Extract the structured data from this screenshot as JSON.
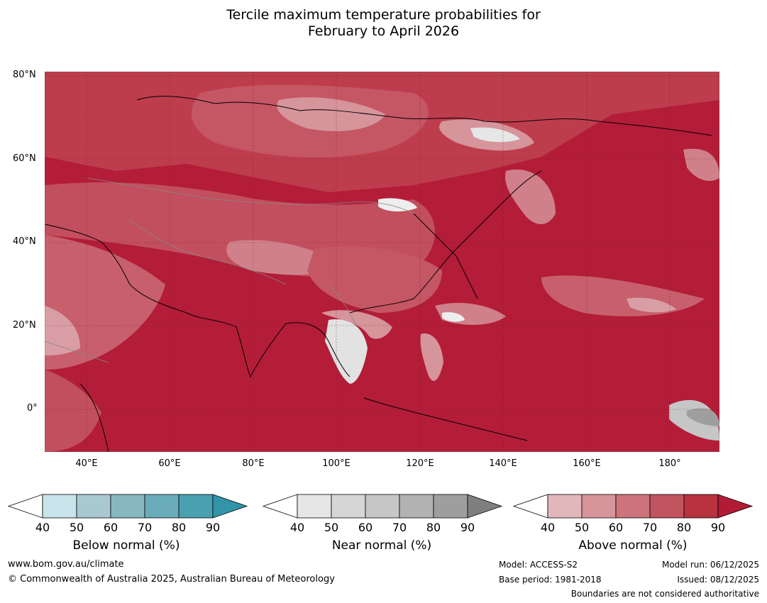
{
  "title": {
    "line1": "Tercile maximum temperature probabilities for",
    "line2": "February to April 2026"
  },
  "map": {
    "lat_labels": [
      "80°N",
      "60°N",
      "40°N",
      "20°N",
      "0°"
    ],
    "lon_labels": [
      "40°E",
      "60°E",
      "80°E",
      "100°E",
      "120°E",
      "140°E",
      "160°E",
      "180°"
    ],
    "lon_range": [
      30,
      192
    ],
    "lat_range": [
      -10,
      81
    ]
  },
  "legends": [
    {
      "title": "Below normal (%)",
      "ticks": [
        "40",
        "50",
        "60",
        "70",
        "80",
        "90"
      ],
      "colors": [
        "#c9e3ea",
        "#a8c9d0",
        "#89b7c1",
        "#6aacba",
        "#4aa0b0",
        "#3294a8"
      ]
    },
    {
      "title": "Near normal (%)",
      "ticks": [
        "40",
        "50",
        "60",
        "70",
        "80",
        "90"
      ],
      "colors": [
        "#e6e6e6",
        "#d6d6d6",
        "#c6c6c6",
        "#b2b2b2",
        "#9e9e9e",
        "#7f7f7f"
      ]
    },
    {
      "title": "Above normal (%)",
      "ticks": [
        "40",
        "50",
        "60",
        "70",
        "80",
        "90"
      ],
      "colors": [
        "#e1b7bc",
        "#d6949b",
        "#cc737c",
        "#c1545f",
        "#b8323f",
        "#b11b36"
      ]
    }
  ],
  "footer": {
    "website": "www.bom.gov.au/climate",
    "copyright": "© Commonwealth of Australia 2025, Australian Bureau of Meteorology",
    "model": "Model: ACCESS-S2",
    "base_period": "Base period: 1981-2018",
    "model_run": "Model run: 06/12/2025",
    "issued": "Issued: 08/12/2025",
    "boundaries": "Boundaries are not considered authoritative"
  }
}
